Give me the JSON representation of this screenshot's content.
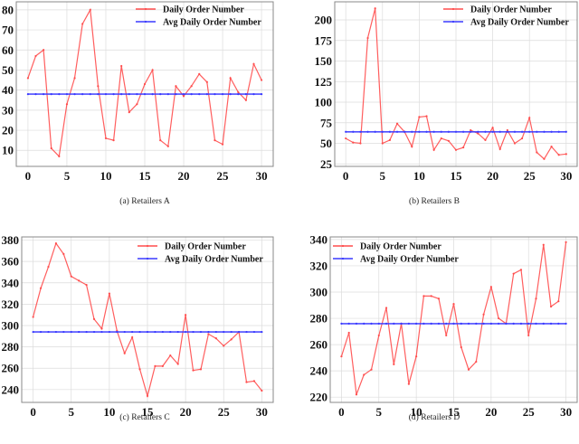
{
  "chart_data": [
    {
      "type": "line",
      "title": "",
      "caption": "(a)  Retailers A",
      "xlabel": "",
      "ylabel": "",
      "x": [
        0,
        1,
        2,
        3,
        4,
        5,
        6,
        7,
        8,
        9,
        10,
        11,
        12,
        13,
        14,
        15,
        16,
        17,
        18,
        19,
        20,
        21,
        22,
        23,
        24,
        25,
        26,
        27,
        28,
        29,
        30
      ],
      "series": [
        {
          "name": "Daily Order Number",
          "color": "#ff4d4d",
          "values": [
            46,
            57,
            60,
            11,
            7,
            33,
            46,
            73,
            80,
            42,
            16,
            15,
            52,
            29,
            33,
            43,
            50,
            15,
            12,
            42,
            37,
            42,
            48,
            44,
            15,
            13,
            46,
            39,
            35,
            53,
            45
          ]
        },
        {
          "name": "Avg Daily Order Number",
          "color": "#3a3aff",
          "values": [
            38,
            38,
            38,
            38,
            38,
            38,
            38,
            38,
            38,
            38,
            38,
            38,
            38,
            38,
            38,
            38,
            38,
            38,
            38,
            38,
            38,
            38,
            38,
            38,
            38,
            38,
            38,
            38,
            38,
            38,
            38
          ]
        }
      ],
      "xticks": [
        0,
        5,
        10,
        15,
        20,
        25,
        30
      ],
      "yticks": [
        10,
        20,
        30,
        40,
        50,
        60,
        70,
        80
      ],
      "xlim": [
        -1.5,
        31.5
      ],
      "ylim": [
        2,
        84
      ],
      "grid": true,
      "legend_position": "upper right"
    },
    {
      "type": "line",
      "title": "",
      "caption": "(b)  Retailers B",
      "xlabel": "",
      "ylabel": "",
      "x": [
        0,
        1,
        2,
        3,
        4,
        5,
        6,
        7,
        8,
        9,
        10,
        11,
        12,
        13,
        14,
        15,
        16,
        17,
        18,
        19,
        20,
        21,
        22,
        23,
        24,
        25,
        26,
        27,
        28,
        29,
        30
      ],
      "series": [
        {
          "name": "Daily Order Number",
          "color": "#ff4d4d",
          "values": [
            56,
            51,
            50,
            178,
            214,
            50,
            54,
            74,
            64,
            46,
            82,
            83,
            42,
            56,
            53,
            42,
            45,
            66,
            62,
            54,
            69,
            43,
            66,
            50,
            56,
            81,
            39,
            31,
            46,
            36,
            37
          ]
        },
        {
          "name": "Avg Daily Order Number",
          "color": "#3a3aff",
          "values": [
            64,
            64,
            64,
            64,
            64,
            64,
            64,
            64,
            64,
            64,
            64,
            64,
            64,
            64,
            64,
            64,
            64,
            64,
            64,
            64,
            64,
            64,
            64,
            64,
            64,
            64,
            64,
            64,
            64,
            64,
            64
          ]
        }
      ],
      "xticks": [
        0,
        5,
        10,
        15,
        20,
        25,
        30
      ],
      "yticks": [
        25,
        50,
        75,
        100,
        125,
        150,
        175,
        200
      ],
      "xlim": [
        -1.5,
        31.5
      ],
      "ylim": [
        22,
        222
      ],
      "grid": true,
      "legend_position": "upper right"
    },
    {
      "type": "line",
      "title": "",
      "caption": "(c)  Retailers C",
      "xlabel": "",
      "ylabel": "",
      "x": [
        0,
        1,
        2,
        3,
        4,
        5,
        6,
        7,
        8,
        9,
        10,
        11,
        12,
        13,
        14,
        15,
        16,
        17,
        18,
        19,
        20,
        21,
        22,
        23,
        24,
        25,
        26,
        27,
        28,
        29,
        30
      ],
      "series": [
        {
          "name": "Daily Order Number",
          "color": "#ff4d4d",
          "values": [
            308,
            335,
            355,
            377,
            367,
            346,
            342,
            338,
            306,
            297,
            330,
            295,
            274,
            289,
            259,
            234,
            262,
            262,
            272,
            264,
            310,
            258,
            259,
            292,
            288,
            281,
            287,
            294,
            247,
            248,
            239
          ]
        },
        {
          "name": "Avg Daily Order Number",
          "color": "#3a3aff",
          "values": [
            294,
            294,
            294,
            294,
            294,
            294,
            294,
            294,
            294,
            294,
            294,
            294,
            294,
            294,
            294,
            294,
            294,
            294,
            294,
            294,
            294,
            294,
            294,
            294,
            294,
            294,
            294,
            294,
            294,
            294,
            294
          ]
        }
      ],
      "xticks": [
        0,
        5,
        10,
        15,
        20,
        25,
        30
      ],
      "yticks": [
        240,
        260,
        280,
        300,
        320,
        340,
        360,
        380
      ],
      "xlim": [
        -1.5,
        31.5
      ],
      "ylim": [
        228,
        383
      ],
      "grid": true,
      "legend_position": "upper right"
    },
    {
      "type": "line",
      "title": "",
      "caption": "(d)  Retailers D",
      "xlabel": "",
      "ylabel": "",
      "x": [
        0,
        1,
        2,
        3,
        4,
        5,
        6,
        7,
        8,
        9,
        10,
        11,
        12,
        13,
        14,
        15,
        16,
        17,
        18,
        19,
        20,
        21,
        22,
        23,
        24,
        25,
        26,
        27,
        28,
        29,
        30
      ],
      "series": [
        {
          "name": "Daily Order Number",
          "color": "#ff4d4d",
          "values": [
            251,
            269,
            222,
            237,
            241,
            267,
            288,
            245,
            276,
            230,
            251,
            297,
            297,
            295,
            267,
            291,
            258,
            241,
            247,
            283,
            304,
            280,
            276,
            314,
            317,
            267,
            295,
            336,
            289,
            293,
            338
          ]
        },
        {
          "name": "Avg Daily Order Number",
          "color": "#3a3aff",
          "values": [
            276,
            276,
            276,
            276,
            276,
            276,
            276,
            276,
            276,
            276,
            276,
            276,
            276,
            276,
            276,
            276,
            276,
            276,
            276,
            276,
            276,
            276,
            276,
            276,
            276,
            276,
            276,
            276,
            276,
            276,
            276
          ]
        }
      ],
      "xticks": [
        0,
        5,
        10,
        15,
        20,
        25,
        30
      ],
      "yticks": [
        220,
        240,
        260,
        280,
        300,
        320,
        340
      ],
      "xlim": [
        -1.5,
        31.5
      ],
      "ylim": [
        216,
        342
      ],
      "grid": true,
      "legend_position": "upper left"
    }
  ]
}
